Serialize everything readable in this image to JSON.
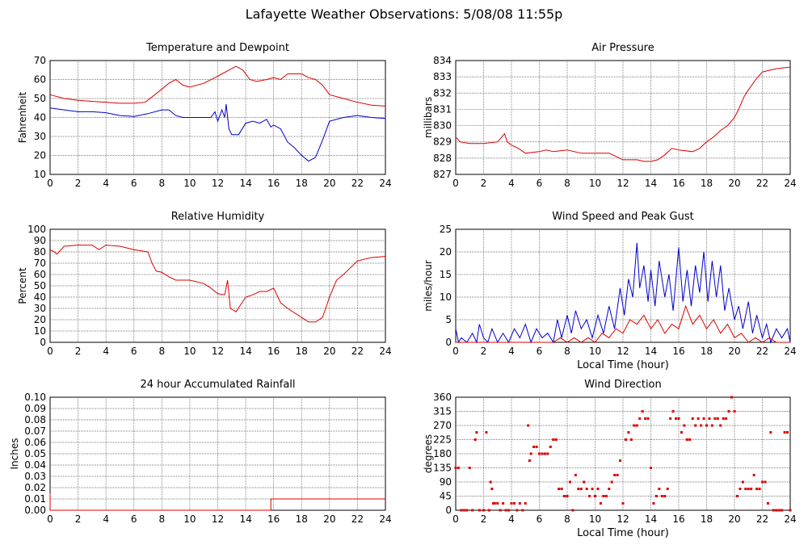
{
  "title": "Lafayette Weather Observations: 5/08/08 11:55p",
  "colors": {
    "red": "#dd0000",
    "blue": "#0000cc",
    "grid": "#555555"
  },
  "chart_data": [
    {
      "id": "temp",
      "type": "line",
      "title": "Temperature and Dewpoint",
      "ylabel": "Fahrenheit",
      "xlabel": "",
      "xlim": [
        0,
        24
      ],
      "ylim": [
        10,
        70
      ],
      "xticks": [
        "0",
        "2",
        "4",
        "6",
        "8",
        "10",
        "12",
        "14",
        "16",
        "18",
        "20",
        "22",
        "24"
      ],
      "yticks": [
        "10",
        "20",
        "30",
        "40",
        "50",
        "60",
        "70"
      ],
      "grid": true,
      "series": [
        {
          "color": "red",
          "x": [
            0,
            1,
            2,
            3,
            4,
            5,
            6,
            6.8,
            7.5,
            8,
            8.5,
            9,
            9.5,
            10,
            11,
            11.8,
            12.3,
            12.8,
            13.3,
            13.8,
            14.3,
            14.8,
            15.5,
            16,
            16.5,
            17,
            18,
            18.5,
            19,
            19.5,
            20,
            21,
            22,
            23,
            24
          ],
          "y": [
            52,
            50,
            49,
            48.5,
            48,
            47.5,
            47.5,
            48,
            52,
            55,
            58,
            60,
            57,
            56,
            58,
            61,
            63,
            65,
            67,
            65,
            60,
            59,
            60,
            61,
            60,
            63,
            63,
            61,
            60,
            57,
            52,
            50,
            48,
            46.5,
            46
          ]
        },
        {
          "color": "blue",
          "x": [
            0,
            1,
            2,
            3,
            4,
            5,
            6,
            7,
            8,
            8.5,
            9,
            9.5,
            10,
            11,
            11.5,
            11.8,
            12,
            12.3,
            12.5,
            12.6,
            12.8,
            13,
            13.5,
            14,
            14.5,
            15,
            15.5,
            15.8,
            16,
            16.5,
            17,
            17.5,
            18,
            18.5,
            19,
            19.5,
            20,
            21,
            22,
            23,
            24
          ],
          "y": [
            45,
            44,
            43,
            43,
            42.5,
            41,
            40.5,
            42,
            44,
            44,
            41,
            40,
            40,
            40,
            40,
            43,
            38,
            44,
            40,
            47,
            34,
            31,
            31,
            37,
            38,
            37,
            39,
            35,
            36,
            34,
            27,
            24,
            20,
            17,
            19,
            28,
            38,
            40,
            41,
            40,
            39.5
          ]
        }
      ]
    },
    {
      "id": "pressure",
      "type": "line",
      "title": "Air Pressure",
      "ylabel": "millibars",
      "xlabel": "",
      "xlim": [
        0,
        24
      ],
      "ylim": [
        827,
        834
      ],
      "xticks": [
        "0",
        "2",
        "4",
        "6",
        "8",
        "10",
        "12",
        "14",
        "16",
        "18",
        "20",
        "22",
        "24"
      ],
      "yticks": [
        "827",
        "828",
        "829",
        "830",
        "831",
        "832",
        "833",
        "834"
      ],
      "grid": true,
      "series": [
        {
          "color": "red",
          "x": [
            0,
            0.3,
            1,
            2,
            3,
            3.5,
            3.7,
            4,
            4.5,
            5,
            6,
            6.5,
            7,
            8,
            9,
            10,
            11,
            11.5,
            12,
            13,
            13.5,
            14,
            14.5,
            15,
            15.5,
            16,
            17,
            17.5,
            18,
            18.5,
            19,
            19.5,
            20,
            20.3,
            20.7,
            21,
            21.5,
            22,
            22.5,
            23,
            24
          ],
          "y": [
            829.3,
            829,
            828.9,
            828.9,
            829,
            829.5,
            829,
            828.8,
            828.6,
            828.3,
            828.4,
            828.5,
            828.4,
            828.5,
            828.3,
            828.3,
            828.3,
            828.1,
            827.9,
            827.9,
            827.8,
            827.8,
            827.9,
            828.2,
            828.6,
            828.5,
            828.4,
            828.6,
            829,
            829.3,
            829.7,
            830,
            830.5,
            831,
            831.8,
            832.2,
            832.8,
            833.3,
            833.4,
            833.5,
            833.6
          ]
        }
      ]
    },
    {
      "id": "humidity",
      "type": "line",
      "title": "Relative Humidity",
      "ylabel": "Percent",
      "xlabel": "",
      "xlim": [
        0,
        24
      ],
      "ylim": [
        0,
        100
      ],
      "xticks": [
        "0",
        "2",
        "4",
        "6",
        "8",
        "10",
        "12",
        "14",
        "16",
        "18",
        "20",
        "22",
        "24"
      ],
      "yticks": [
        "0",
        "10",
        "20",
        "30",
        "40",
        "50",
        "60",
        "70",
        "80",
        "90",
        "100"
      ],
      "grid": true,
      "series": [
        {
          "color": "red",
          "x": [
            0,
            0.3,
            0.5,
            1,
            2,
            3,
            3.5,
            4,
            5,
            6,
            7,
            7.3,
            7.6,
            8,
            8.5,
            9,
            10,
            11,
            11.5,
            12,
            12.5,
            12.7,
            12.9,
            13.3,
            14,
            14.5,
            15,
            15.5,
            16,
            16.5,
            17,
            18,
            18.5,
            19,
            19.5,
            20,
            20.5,
            21,
            22,
            23,
            24
          ],
          "y": [
            82,
            80,
            78,
            85,
            86,
            86,
            82,
            86,
            85,
            82,
            80,
            70,
            63,
            62,
            58,
            55,
            55,
            52,
            48,
            43,
            42,
            55,
            30,
            27,
            40,
            42,
            45,
            45,
            48,
            35,
            30,
            22,
            18,
            18,
            22,
            40,
            55,
            60,
            72,
            75,
            76
          ]
        }
      ]
    },
    {
      "id": "wind",
      "type": "line",
      "title": "Wind Speed and Peak Gust",
      "ylabel": "miles/hour",
      "xlabel": "Local Time (hour)",
      "xlim": [
        0,
        24
      ],
      "ylim": [
        0,
        25
      ],
      "xticks": [
        "0",
        "2",
        "4",
        "6",
        "8",
        "10",
        "12",
        "14",
        "16",
        "18",
        "20",
        "22",
        "24"
      ],
      "yticks": [
        "0",
        "5",
        "10",
        "15",
        "20",
        "25"
      ],
      "grid": true,
      "series": [
        {
          "color": "blue",
          "x": [
            0,
            0.2,
            0.4,
            0.8,
            1.2,
            1.5,
            1.7,
            2,
            2.3,
            2.6,
            3,
            3.4,
            3.8,
            4.2,
            4.6,
            5,
            5.4,
            5.8,
            6.2,
            6.6,
            7,
            7.3,
            7.6,
            8,
            8.3,
            8.6,
            9,
            9.4,
            9.8,
            10.2,
            10.6,
            11,
            11.4,
            11.8,
            12.1,
            12.4,
            12.7,
            13,
            13.2,
            13.5,
            13.8,
            14,
            14.3,
            14.6,
            15,
            15.3,
            15.6,
            16,
            16.3,
            16.6,
            16.9,
            17.2,
            17.5,
            17.8,
            18.1,
            18.4,
            18.7,
            19,
            19.3,
            19.6,
            20,
            20.3,
            20.6,
            21,
            21.3,
            21.6,
            22,
            22.3,
            22.6,
            23,
            23.4,
            23.8,
            24
          ],
          "y": [
            3,
            0,
            1,
            0,
            2,
            0,
            4,
            1,
            0,
            3,
            0,
            2,
            0,
            3,
            1,
            4,
            0,
            3,
            1,
            2,
            0,
            5,
            1,
            6,
            2,
            7,
            3,
            5,
            1,
            6,
            2,
            8,
            3,
            12,
            6,
            14,
            10,
            22,
            12,
            17,
            9,
            16,
            8,
            18,
            10,
            15,
            7,
            21,
            9,
            16,
            8,
            17,
            11,
            20,
            9,
            18,
            10,
            17,
            7,
            12,
            5,
            8,
            3,
            9,
            2,
            6,
            1,
            4,
            0,
            3,
            1,
            3,
            0
          ]
        },
        {
          "color": "red",
          "x": [
            0,
            1,
            2,
            3,
            4,
            5,
            6,
            7,
            7.5,
            8,
            8.5,
            9,
            9.5,
            10,
            10.5,
            11,
            11.5,
            12,
            12.5,
            13,
            13.5,
            14,
            14.5,
            15,
            15.5,
            16,
            16.5,
            17,
            17.5,
            18,
            18.5,
            19,
            19.5,
            20,
            20.5,
            21,
            21.5,
            22,
            22.5,
            23,
            24
          ],
          "y": [
            0,
            0,
            0,
            0,
            0,
            0,
            0,
            0,
            1,
            0,
            1,
            0,
            1,
            0,
            2,
            1,
            3,
            2,
            5,
            4,
            6,
            3,
            5,
            2,
            4,
            3,
            8,
            4,
            6,
            3,
            5,
            2,
            4,
            1,
            2,
            0,
            1,
            0,
            1,
            0,
            0
          ]
        }
      ]
    },
    {
      "id": "rain",
      "type": "line",
      "title": "24 hour Accumulated Rainfall",
      "ylabel": "Inches",
      "xlabel": "",
      "xlim": [
        0,
        24
      ],
      "ylim": [
        0,
        0.1
      ],
      "xticks": [
        "0",
        "2",
        "4",
        "6",
        "8",
        "10",
        "12",
        "14",
        "16",
        "18",
        "20",
        "22",
        "24"
      ],
      "yticks": [
        "0.00",
        "0.01",
        "0.02",
        "0.03",
        "0.04",
        "0.05",
        "0.06",
        "0.07",
        "0.08",
        "0.09",
        "0.10"
      ],
      "grid": true,
      "series": [
        {
          "color": "red",
          "x": [
            0,
            0,
            0.05,
            15.8,
            15.8,
            24
          ],
          "y": [
            0.015,
            0,
            0,
            0,
            0.01,
            0.01
          ]
        }
      ]
    },
    {
      "id": "winddir",
      "type": "scatter",
      "title": "Wind Direction",
      "ylabel": "degrees",
      "xlabel": "Local Time (hour)",
      "xlim": [
        0,
        24
      ],
      "ylim": [
        0,
        360
      ],
      "xticks": [
        "0",
        "2",
        "4",
        "6",
        "8",
        "10",
        "12",
        "14",
        "16",
        "18",
        "20",
        "22",
        "24"
      ],
      "yticks": [
        "0",
        "45",
        "90",
        "135",
        "180",
        "225",
        "270",
        "315",
        "360"
      ],
      "grid": true,
      "series": [
        {
          "color": "red",
          "x": [
            0,
            0.2,
            0.4,
            0.6,
            0.8,
            1,
            1.2,
            1.4,
            1.5,
            1.7,
            2,
            2.2,
            2.4,
            2.5,
            2.6,
            2.7,
            2.8,
            3,
            3.2,
            3.4,
            3.6,
            3.8,
            4,
            4.2,
            4.4,
            4.6,
            4.8,
            5,
            5.2,
            5.3,
            5.4,
            5.6,
            5.8,
            6,
            6.2,
            6.4,
            6.6,
            6.8,
            7,
            7.2,
            7.4,
            7.6,
            7.8,
            8,
            8.2,
            8.4,
            8.6,
            8.8,
            9,
            9.2,
            9.4,
            9.6,
            9.8,
            10,
            10.2,
            10.4,
            10.6,
            10.8,
            11,
            11.2,
            11.4,
            11.6,
            11.8,
            12,
            12.2,
            12.4,
            12.6,
            12.8,
            13,
            13.2,
            13.4,
            13.6,
            13.8,
            14,
            14.2,
            14.4,
            14.6,
            14.8,
            15,
            15.2,
            15.4,
            15.6,
            15.8,
            16,
            16.2,
            16.4,
            16.6,
            16.8,
            17,
            17.2,
            17.4,
            17.6,
            17.8,
            18,
            18.2,
            18.4,
            18.6,
            18.8,
            19,
            19.2,
            19.4,
            19.6,
            19.8,
            20,
            20.2,
            20.4,
            20.6,
            20.8,
            21,
            21.2,
            21.4,
            21.6,
            21.8,
            22,
            22.2,
            22.4,
            22.6,
            22.8,
            23,
            23.2,
            23.4,
            23.6,
            23.8,
            24
          ],
          "y": [
            135,
            135,
            0,
            0,
            0,
            135,
            0,
            225,
            248,
            0,
            0,
            248,
            0,
            90,
            68,
            22,
            22,
            22,
            0,
            22,
            0,
            0,
            22,
            22,
            0,
            22,
            0,
            22,
            270,
            158,
            180,
            202,
            202,
            180,
            180,
            180,
            180,
            202,
            225,
            225,
            68,
            68,
            45,
            45,
            90,
            0,
            112,
            68,
            68,
            90,
            68,
            45,
            68,
            45,
            68,
            22,
            45,
            45,
            68,
            90,
            112,
            112,
            158,
            22,
            225,
            248,
            225,
            270,
            270,
            292,
            315,
            292,
            292,
            135,
            22,
            45,
            68,
            45,
            45,
            68,
            292,
            315,
            292,
            292,
            248,
            270,
            225,
            225,
            292,
            270,
            292,
            270,
            292,
            270,
            292,
            270,
            292,
            292,
            270,
            292,
            292,
            315,
            360,
            315,
            45,
            68,
            90,
            68,
            68,
            68,
            112,
            68,
            68,
            90,
            90,
            22,
            248,
            0,
            0,
            0,
            0,
            248,
            248,
            0
          ]
        }
      ]
    }
  ]
}
